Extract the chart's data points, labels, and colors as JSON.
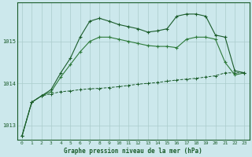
{
  "title": "Graphe pression niveau de la mer (hPa)",
  "bg_color": "#cce8ec",
  "grid_color": "#aacccc",
  "line_color_dark": "#1a5c2a",
  "line_color_mid": "#2d7a3a",
  "xlim": [
    -0.5,
    23.5
  ],
  "ylim": [
    1012.65,
    1015.92
  ],
  "yticks": [
    1013,
    1014,
    1015
  ],
  "xticks": [
    0,
    1,
    2,
    3,
    4,
    5,
    6,
    7,
    8,
    9,
    10,
    11,
    12,
    13,
    14,
    15,
    16,
    17,
    18,
    19,
    20,
    21,
    22,
    23
  ],
  "series1_x": [
    0,
    1,
    2,
    3,
    4,
    5,
    6,
    7,
    8,
    9,
    10,
    11,
    12,
    13,
    14,
    15,
    16,
    17,
    18,
    19,
    20,
    21,
    22,
    23
  ],
  "series1_y": [
    1012.75,
    1013.55,
    1013.7,
    1013.75,
    1013.8,
    1013.82,
    1013.85,
    1013.87,
    1013.88,
    1013.9,
    1013.92,
    1013.95,
    1013.98,
    1014.0,
    1014.02,
    1014.05,
    1014.08,
    1014.1,
    1014.12,
    1014.15,
    1014.18,
    1014.25,
    1014.25,
    1014.25
  ],
  "series2_x": [
    0,
    1,
    2,
    3,
    4,
    5,
    6,
    7,
    8,
    9,
    10,
    11,
    12,
    13,
    14,
    15,
    16,
    17,
    18,
    19,
    20,
    21,
    22,
    23
  ],
  "series2_y": [
    1012.75,
    1013.55,
    1013.7,
    1013.8,
    1014.15,
    1014.45,
    1014.75,
    1015.0,
    1015.1,
    1015.1,
    1015.05,
    1015.0,
    1014.95,
    1014.9,
    1014.88,
    1014.88,
    1014.85,
    1015.05,
    1015.1,
    1015.1,
    1015.05,
    1014.5,
    1014.2,
    1014.25
  ],
  "series3_x": [
    0,
    1,
    2,
    3,
    4,
    5,
    6,
    7,
    8,
    9,
    10,
    11,
    12,
    13,
    14,
    15,
    16,
    17,
    18,
    19,
    20,
    21,
    22,
    23
  ],
  "series3_y": [
    1012.75,
    1013.55,
    1013.7,
    1013.85,
    1014.25,
    1014.6,
    1015.1,
    1015.48,
    1015.55,
    1015.48,
    1015.4,
    1015.35,
    1015.3,
    1015.22,
    1015.25,
    1015.3,
    1015.6,
    1015.65,
    1015.65,
    1015.6,
    1015.15,
    1015.1,
    1014.3,
    1014.25
  ]
}
